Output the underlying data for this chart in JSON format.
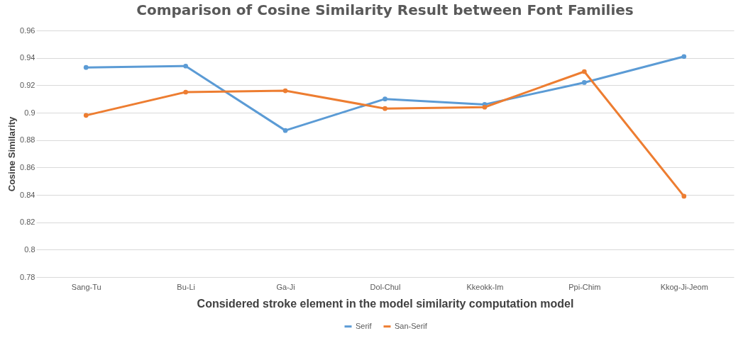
{
  "chart_data": {
    "type": "line",
    "title": "Comparison  of Cosine Similarity Result between Font Families",
    "xlabel": "Considered stroke element in the model similarity computation model",
    "ylabel": "Cosine Similarity",
    "categories": [
      "Sang-Tu",
      "Bu-Li",
      "Ga-Ji",
      "Dol-Chul",
      "Kkeokk-Im",
      "Ppi-Chim",
      "Kkog-Ji-Jeom"
    ],
    "series": [
      {
        "name": "Serif",
        "color": "#5b9bd5",
        "values": [
          0.933,
          0.934,
          0.887,
          0.91,
          0.906,
          0.922,
          0.941
        ]
      },
      {
        "name": "San-Serif",
        "color": "#ed7d31",
        "values": [
          0.898,
          0.915,
          0.916,
          0.903,
          0.904,
          0.93,
          0.839
        ]
      }
    ],
    "ylim": [
      0.78,
      0.96
    ],
    "yticks": [
      0.78,
      0.8,
      0.82,
      0.84,
      0.86,
      0.88,
      0.9,
      0.92,
      0.94,
      0.96
    ],
    "grid": "y",
    "legend": "bottom",
    "marker": "circle",
    "line_style": "solid"
  }
}
